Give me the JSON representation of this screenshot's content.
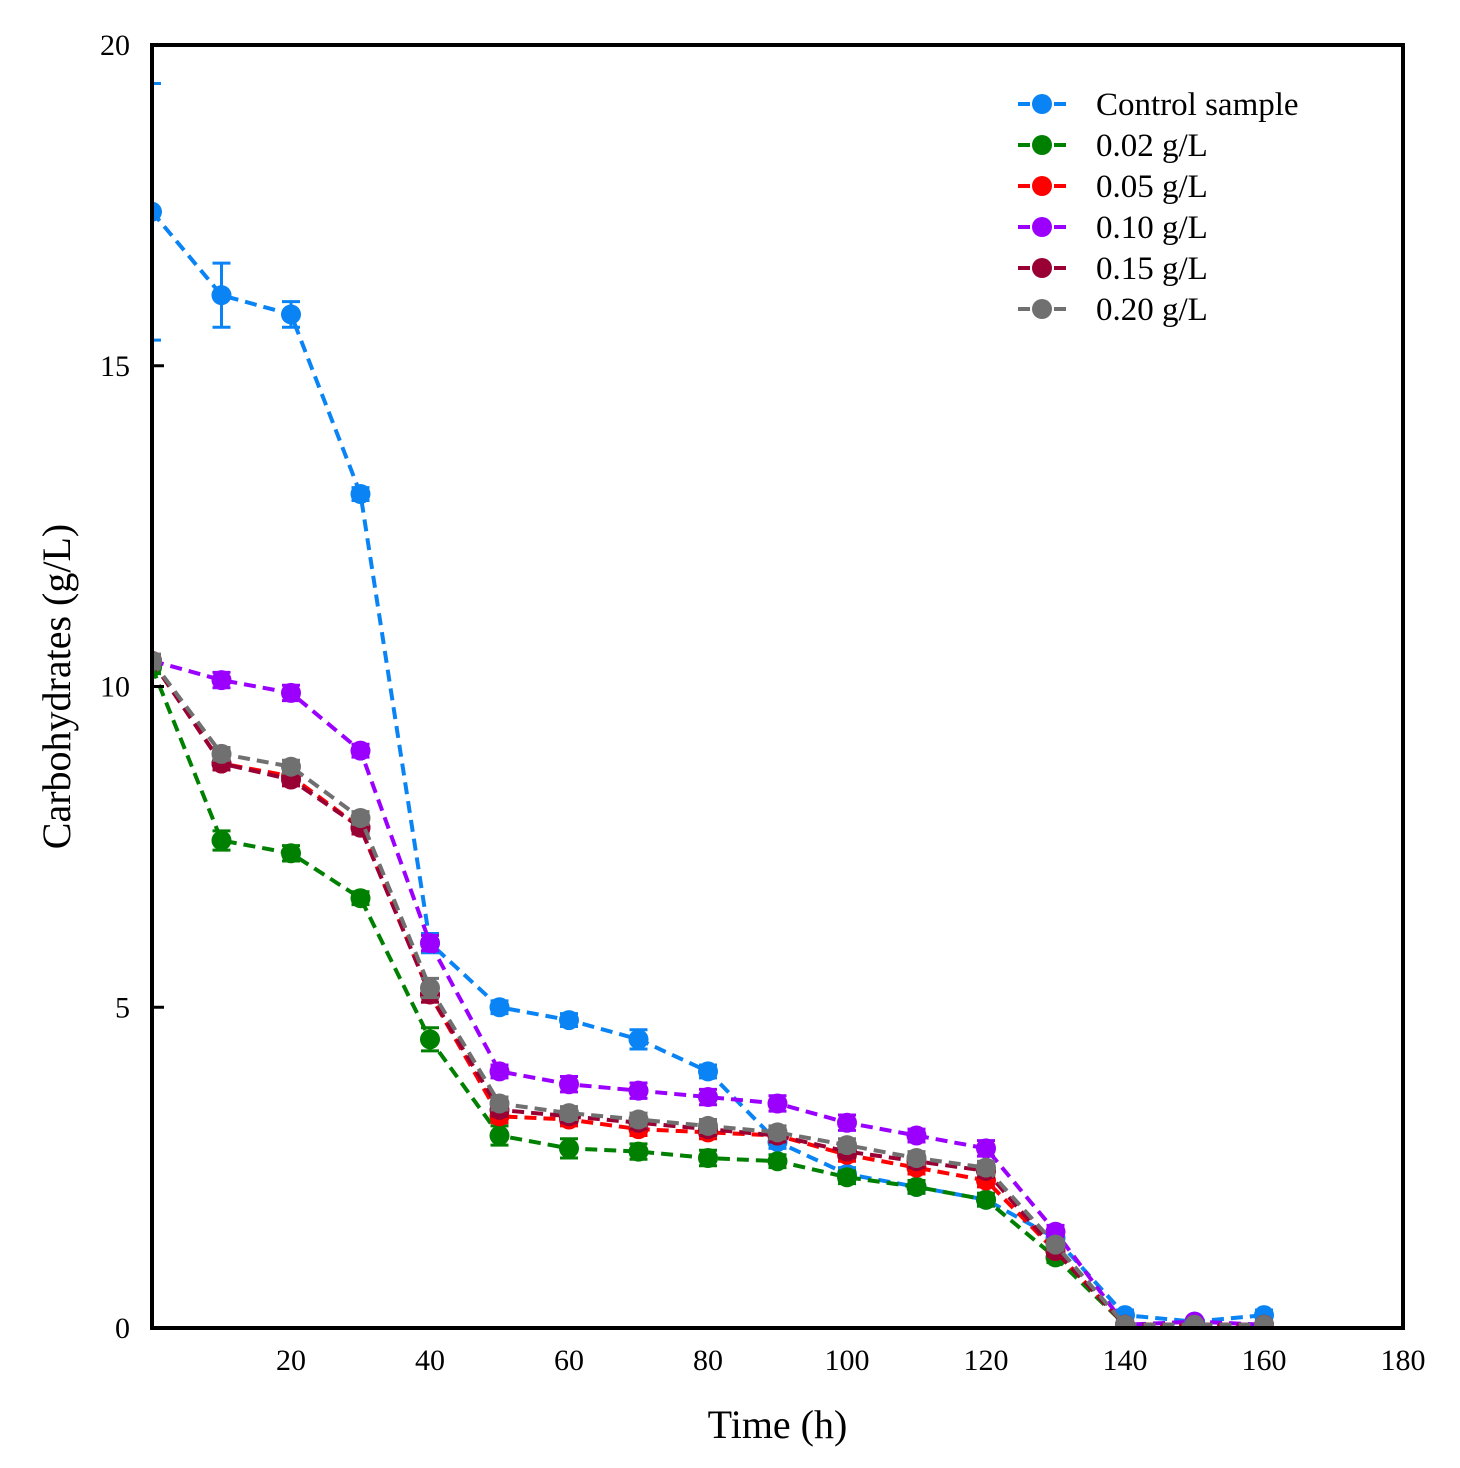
{
  "chart_data": {
    "type": "line",
    "title": "",
    "xlabel": "Time (h)",
    "ylabel": "Carbohydrates (g/L)",
    "xlim": [
      0,
      180
    ],
    "ylim": [
      0,
      20
    ],
    "xticks": [
      20,
      40,
      60,
      80,
      100,
      120,
      140,
      160,
      180
    ],
    "yticks": [
      0,
      5,
      10,
      15,
      20
    ],
    "grid": false,
    "legend_position": "top-right",
    "line_style": "dashed",
    "marker": "circle",
    "x": [
      0,
      10,
      20,
      30,
      40,
      50,
      60,
      70,
      80,
      90,
      100,
      110,
      120,
      130,
      140,
      150,
      160
    ],
    "series": [
      {
        "name": "Control sample",
        "color": "#0a84f5",
        "values": [
          17.4,
          16.1,
          15.8,
          13.0,
          6.0,
          5.0,
          4.8,
          4.5,
          4.0,
          2.9,
          2.4,
          2.2,
          2.0,
          1.4,
          0.2,
          0.1,
          0.2
        ],
        "errors": [
          2.0,
          0.5,
          0.2,
          0.1,
          0.15,
          0.1,
          0.1,
          0.15,
          0.1,
          0.1,
          0.1,
          0.1,
          0.1,
          0.1,
          0.08,
          0.05,
          0.08
        ]
      },
      {
        "name": "0.02 g/L",
        "color": "#008000",
        "values": [
          10.3,
          7.6,
          7.4,
          6.7,
          4.5,
          3.0,
          2.8,
          2.75,
          2.65,
          2.6,
          2.35,
          2.2,
          2.0,
          1.1,
          0.05,
          0.05,
          0.05
        ],
        "errors": [
          0.1,
          0.15,
          0.12,
          0.1,
          0.18,
          0.15,
          0.15,
          0.12,
          0.12,
          0.1,
          0.1,
          0.1,
          0.1,
          0.08,
          0.05,
          0.05,
          0.05
        ]
      },
      {
        "name": "0.05 g/L",
        "color": "#ff0000",
        "values": [
          10.4,
          8.8,
          8.6,
          7.8,
          5.2,
          3.3,
          3.25,
          3.1,
          3.05,
          3.0,
          2.7,
          2.5,
          2.3,
          1.2,
          0.05,
          0.05,
          0.05
        ],
        "errors": [
          0.1,
          0.1,
          0.1,
          0.1,
          0.12,
          0.1,
          0.1,
          0.1,
          0.1,
          0.1,
          0.1,
          0.1,
          0.1,
          0.08,
          0.05,
          0.05,
          0.05
        ]
      },
      {
        "name": "0.10 g/L",
        "color": "#9b00ff",
        "values": [
          10.4,
          10.1,
          9.9,
          9.0,
          6.0,
          4.0,
          3.8,
          3.7,
          3.6,
          3.5,
          3.2,
          3.0,
          2.8,
          1.5,
          0.05,
          0.1,
          0.05
        ],
        "errors": [
          0.1,
          0.12,
          0.12,
          0.1,
          0.12,
          0.1,
          0.12,
          0.12,
          0.12,
          0.12,
          0.12,
          0.1,
          0.12,
          0.1,
          0.05,
          0.05,
          0.05
        ]
      },
      {
        "name": "0.15 g/L",
        "color": "#990033",
        "values": [
          10.4,
          8.8,
          8.55,
          7.8,
          5.2,
          3.4,
          3.3,
          3.2,
          3.1,
          3.0,
          2.75,
          2.6,
          2.45,
          1.2,
          0.05,
          0.05,
          0.05
        ],
        "errors": [
          0.1,
          0.1,
          0.1,
          0.1,
          0.12,
          0.1,
          0.1,
          0.1,
          0.1,
          0.1,
          0.1,
          0.1,
          0.1,
          0.08,
          0.05,
          0.05,
          0.05
        ]
      },
      {
        "name": "0.20 g/L",
        "color": "#707070",
        "values": [
          10.4,
          8.95,
          8.75,
          7.95,
          5.3,
          3.5,
          3.35,
          3.25,
          3.15,
          3.05,
          2.85,
          2.65,
          2.5,
          1.3,
          0.05,
          0.05,
          0.05
        ],
        "errors": [
          0.1,
          0.1,
          0.1,
          0.1,
          0.15,
          0.1,
          0.1,
          0.1,
          0.1,
          0.1,
          0.1,
          0.1,
          0.1,
          0.08,
          0.05,
          0.05,
          0.05
        ]
      }
    ]
  }
}
